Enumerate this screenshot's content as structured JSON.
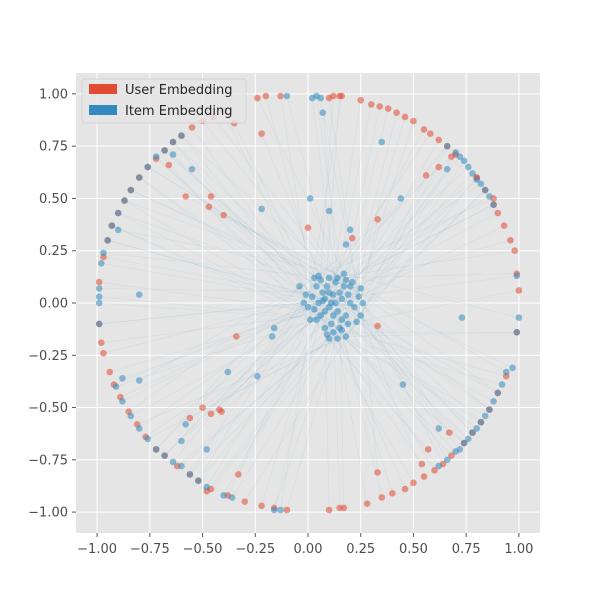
{
  "chart_data": {
    "type": "scatter",
    "title": "",
    "xlabel": "",
    "ylabel": "",
    "xlim": [
      -1.1,
      1.1
    ],
    "ylim": [
      -1.1,
      1.1
    ],
    "xticks": [
      -1.0,
      -0.75,
      -0.5,
      -0.25,
      0.0,
      0.25,
      0.5,
      0.75,
      1.0
    ],
    "yticks": [
      -1.0,
      -0.75,
      -0.5,
      -0.25,
      0.0,
      0.25,
      0.5,
      0.75,
      1.0
    ],
    "xtick_labels": [
      "−1.00",
      "−0.75",
      "−0.50",
      "−0.25",
      "0.00",
      "0.25",
      "0.50",
      "0.75",
      "1.00"
    ],
    "ytick_labels": [
      "−1.00",
      "−0.75",
      "−0.50",
      "−0.25",
      "0.00",
      "0.25",
      "0.50",
      "0.75",
      "1.00"
    ],
    "grid": true,
    "background": "#e5e5e5",
    "legend": {
      "position": "top-left"
    },
    "series": [
      {
        "name": "User Embedding",
        "color": "#e24a33",
        "points": [
          [
            0.12,
            0.99
          ],
          [
            0.15,
            0.99
          ],
          [
            0.25,
            0.97
          ],
          [
            0.3,
            0.95
          ],
          [
            0.34,
            0.94
          ],
          [
            0.38,
            0.93
          ],
          [
            0.42,
            0.91
          ],
          [
            0.46,
            0.89
          ],
          [
            0.5,
            0.87
          ],
          [
            0.55,
            0.83
          ],
          [
            0.58,
            0.81
          ],
          [
            0.62,
            0.78
          ],
          [
            0.66,
            0.75
          ],
          [
            0.7,
            0.71
          ],
          [
            0.8,
            0.6
          ],
          [
            0.84,
            0.54
          ],
          [
            0.88,
            0.47
          ],
          [
            0.9,
            0.43
          ],
          [
            0.93,
            0.37
          ],
          [
            0.96,
            0.3
          ],
          [
            0.98,
            0.25
          ],
          [
            0.99,
            0.14
          ],
          [
            1.0,
            0.06
          ],
          [
            0.99,
            -0.14
          ],
          [
            0.94,
            -0.35
          ],
          [
            0.9,
            -0.43
          ],
          [
            0.86,
            -0.51
          ],
          [
            0.82,
            -0.57
          ],
          [
            0.78,
            -0.62
          ],
          [
            0.74,
            -0.67
          ],
          [
            0.68,
            -0.73
          ],
          [
            0.64,
            -0.77
          ],
          [
            0.6,
            -0.8
          ],
          [
            0.55,
            -0.83
          ],
          [
            0.5,
            -0.86
          ],
          [
            0.46,
            -0.89
          ],
          [
            0.4,
            -0.91
          ],
          [
            0.35,
            -0.93
          ],
          [
            0.28,
            -0.96
          ],
          [
            0.17,
            -0.98
          ],
          [
            0.15,
            -0.98
          ],
          [
            0.1,
            -0.99
          ],
          [
            -0.1,
            -0.99
          ],
          [
            -0.16,
            -0.98
          ],
          [
            -0.22,
            -0.97
          ],
          [
            -0.3,
            -0.95
          ],
          [
            -0.38,
            -0.92
          ],
          [
            -0.46,
            -0.89
          ],
          [
            -0.52,
            -0.85
          ],
          [
            -0.56,
            -0.82
          ],
          [
            -0.62,
            -0.78
          ],
          [
            -0.68,
            -0.73
          ],
          [
            -0.72,
            -0.7
          ],
          [
            -0.77,
            -0.64
          ],
          [
            -0.81,
            -0.58
          ],
          [
            -0.85,
            -0.52
          ],
          [
            -0.89,
            -0.45
          ],
          [
            -0.92,
            -0.39
          ],
          [
            -0.94,
            -0.33
          ],
          [
            -0.97,
            -0.24
          ],
          [
            -0.98,
            -0.19
          ],
          [
            -0.99,
            -0.1
          ],
          [
            -0.99,
            0.1
          ],
          [
            -0.97,
            0.22
          ],
          [
            -0.95,
            0.3
          ],
          [
            -0.93,
            0.37
          ],
          [
            -0.9,
            0.43
          ],
          [
            -0.87,
            0.49
          ],
          [
            -0.84,
            0.54
          ],
          [
            -0.8,
            0.6
          ],
          [
            -0.76,
            0.65
          ],
          [
            -0.72,
            0.69
          ],
          [
            -0.68,
            0.73
          ],
          [
            -0.64,
            0.77
          ],
          [
            -0.6,
            0.8
          ],
          [
            -0.55,
            0.84
          ],
          [
            -0.5,
            0.87
          ],
          [
            -0.45,
            0.89
          ],
          [
            -0.4,
            0.92
          ],
          [
            -0.35,
            0.86
          ],
          [
            -0.22,
            0.81
          ],
          [
            -0.24,
            0.98
          ],
          [
            -0.2,
            0.99
          ],
          [
            -0.13,
            0.99
          ],
          [
            0.1,
            0.98
          ],
          [
            0.16,
            0.99
          ],
          [
            -0.46,
            0.51
          ],
          [
            -0.47,
            0.46
          ],
          [
            -0.4,
            0.42
          ],
          [
            -0.58,
            0.51
          ],
          [
            -0.66,
            0.66
          ],
          [
            -0.56,
            -0.55
          ],
          [
            -0.46,
            -0.53
          ],
          [
            -0.5,
            -0.5
          ],
          [
            -0.42,
            -0.51
          ],
          [
            -0.34,
            -0.16
          ],
          [
            -0.41,
            -0.52
          ],
          [
            -0.33,
            -0.82
          ],
          [
            -0.48,
            -0.9
          ],
          [
            0.0,
            0.36
          ],
          [
            0.21,
            0.31
          ],
          [
            0.33,
            0.4
          ],
          [
            0.33,
            -0.11
          ],
          [
            0.56,
            0.61
          ],
          [
            0.62,
            0.65
          ],
          [
            0.68,
            0.7
          ],
          [
            0.57,
            -0.7
          ],
          [
            0.67,
            -0.62
          ],
          [
            0.54,
            -0.77
          ],
          [
            0.33,
            -0.81
          ],
          [
            0.8,
            0.6
          ],
          [
            0.88,
            0.5
          ]
        ]
      },
      {
        "name": "Item Embedding",
        "color": "#348abd",
        "points": [
          [
            -0.6,
            0.8
          ],
          [
            -0.64,
            0.77
          ],
          [
            -0.68,
            0.73
          ],
          [
            -0.72,
            0.7
          ],
          [
            -0.76,
            0.65
          ],
          [
            -0.8,
            0.6
          ],
          [
            -0.84,
            0.54
          ],
          [
            -0.87,
            0.49
          ],
          [
            -0.9,
            0.43
          ],
          [
            -0.93,
            0.37
          ],
          [
            -0.95,
            0.3
          ],
          [
            -0.97,
            0.24
          ],
          [
            -0.98,
            0.19
          ],
          [
            -0.99,
            0.07
          ],
          [
            -0.99,
            0.03
          ],
          [
            -0.99,
            0.0
          ],
          [
            -0.99,
            -0.1
          ],
          [
            -0.9,
            0.35
          ],
          [
            0.74,
            0.68
          ],
          [
            0.76,
            0.65
          ],
          [
            0.78,
            0.62
          ],
          [
            0.8,
            0.59
          ],
          [
            0.82,
            0.57
          ],
          [
            0.84,
            0.54
          ],
          [
            0.86,
            0.51
          ],
          [
            0.88,
            0.47
          ],
          [
            0.72,
            0.7
          ],
          [
            0.7,
            0.72
          ],
          [
            0.66,
            0.75
          ],
          [
            0.94,
            -0.33
          ],
          [
            0.92,
            -0.39
          ],
          [
            0.9,
            -0.43
          ],
          [
            0.88,
            -0.47
          ],
          [
            0.86,
            -0.51
          ],
          [
            0.84,
            -0.54
          ],
          [
            0.82,
            -0.57
          ],
          [
            0.8,
            -0.6
          ],
          [
            0.78,
            -0.62
          ],
          [
            0.76,
            -0.65
          ],
          [
            0.74,
            -0.67
          ],
          [
            0.72,
            -0.7
          ],
          [
            0.7,
            -0.71
          ],
          [
            0.66,
            -0.75
          ],
          [
            0.62,
            -0.78
          ],
          [
            0.97,
            -0.31
          ],
          [
            -0.6,
            -0.78
          ],
          [
            -0.64,
            -0.76
          ],
          [
            -0.68,
            -0.73
          ],
          [
            -0.72,
            -0.7
          ],
          [
            -0.76,
            -0.65
          ],
          [
            -0.8,
            -0.6
          ],
          [
            -0.84,
            -0.54
          ],
          [
            -0.88,
            -0.47
          ],
          [
            -0.91,
            -0.4
          ],
          [
            -0.56,
            -0.82
          ],
          [
            -0.52,
            -0.85
          ],
          [
            -0.48,
            -0.88
          ],
          [
            -0.4,
            -0.92
          ],
          [
            -0.36,
            -0.93
          ],
          [
            -0.16,
            -0.99
          ],
          [
            -0.1,
            0.99
          ],
          [
            0.04,
            0.99
          ],
          [
            0.06,
            0.98
          ],
          [
            0.07,
            0.91
          ],
          [
            0.02,
            0.98
          ],
          [
            0.01,
            0.5
          ],
          [
            0.1,
            0.44
          ],
          [
            0.2,
            0.35
          ],
          [
            0.18,
            0.28
          ],
          [
            0.35,
            0.77
          ],
          [
            0.44,
            0.5
          ],
          [
            0.66,
            0.64
          ],
          [
            0.99,
            0.13
          ],
          [
            1.0,
            -0.07
          ],
          [
            0.99,
            -0.14
          ],
          [
            0.73,
            -0.07
          ],
          [
            0.45,
            -0.39
          ],
          [
            0.62,
            -0.6
          ],
          [
            -0.22,
            0.45
          ],
          [
            -0.24,
            -0.35
          ],
          [
            -0.17,
            -0.16
          ],
          [
            -0.16,
            -0.12
          ],
          [
            -0.38,
            -0.33
          ],
          [
            -0.58,
            -0.58
          ],
          [
            -0.48,
            -0.7
          ],
          [
            -0.6,
            -0.66
          ],
          [
            -0.8,
            0.04
          ],
          [
            -0.88,
            -0.36
          ],
          [
            -0.64,
            0.71
          ],
          [
            -0.55,
            0.64
          ],
          [
            -0.13,
            -0.99
          ],
          [
            -0.8,
            -0.37
          ],
          [
            0.05,
            0.0
          ],
          [
            0.08,
            0.02
          ],
          [
            0.1,
            -0.02
          ],
          [
            0.12,
            0.04
          ],
          [
            0.14,
            -0.04
          ],
          [
            0.16,
            0.02
          ],
          [
            0.18,
            -0.06
          ],
          [
            0.2,
            0.0
          ],
          [
            0.22,
            -0.02
          ],
          [
            0.06,
            -0.06
          ],
          [
            0.09,
            0.08
          ],
          [
            0.11,
            -0.1
          ],
          [
            0.13,
            0.1
          ],
          [
            0.15,
            -0.12
          ],
          [
            0.17,
            0.08
          ],
          [
            0.19,
            -0.1
          ],
          [
            0.07,
            0.05
          ],
          [
            0.03,
            -0.03
          ],
          [
            0.24,
            0.03
          ],
          [
            0.02,
            0.03
          ],
          [
            0.1,
            0.12
          ],
          [
            0.14,
            0.12
          ],
          [
            0.08,
            -0.12
          ],
          [
            0.12,
            -0.14
          ],
          [
            0.16,
            -0.13
          ],
          [
            0.2,
            0.08
          ],
          [
            0.04,
            0.08
          ],
          [
            0.04,
            -0.08
          ],
          [
            0.25,
            -0.06
          ],
          [
            0.0,
            -0.02
          ],
          [
            -0.01,
            0.04
          ],
          [
            0.21,
            0.1
          ],
          [
            0.06,
            0.11
          ],
          [
            0.18,
            0.11
          ],
          [
            0.09,
            -0.15
          ],
          [
            0.14,
            -0.17
          ],
          [
            0.11,
            0.0
          ],
          [
            0.13,
            0.0
          ],
          [
            0.1,
            0.05
          ],
          [
            0.15,
            0.05
          ],
          [
            0.12,
            -0.06
          ],
          [
            0.08,
            -0.04
          ],
          [
            0.16,
            -0.08
          ],
          [
            0.19,
            0.04
          ],
          [
            0.07,
            0.01
          ],
          [
            0.23,
            -0.09
          ],
          [
            0.01,
            -0.08
          ],
          [
            0.26,
            0.0
          ],
          [
            -0.02,
            0.0
          ],
          [
            0.05,
            0.13
          ],
          [
            0.1,
            -0.17
          ],
          [
            0.17,
            0.14
          ],
          [
            -0.04,
            0.08
          ],
          [
            0.25,
            0.07
          ],
          [
            0.18,
            -0.16
          ],
          [
            0.03,
            0.12
          ]
        ]
      }
    ]
  }
}
